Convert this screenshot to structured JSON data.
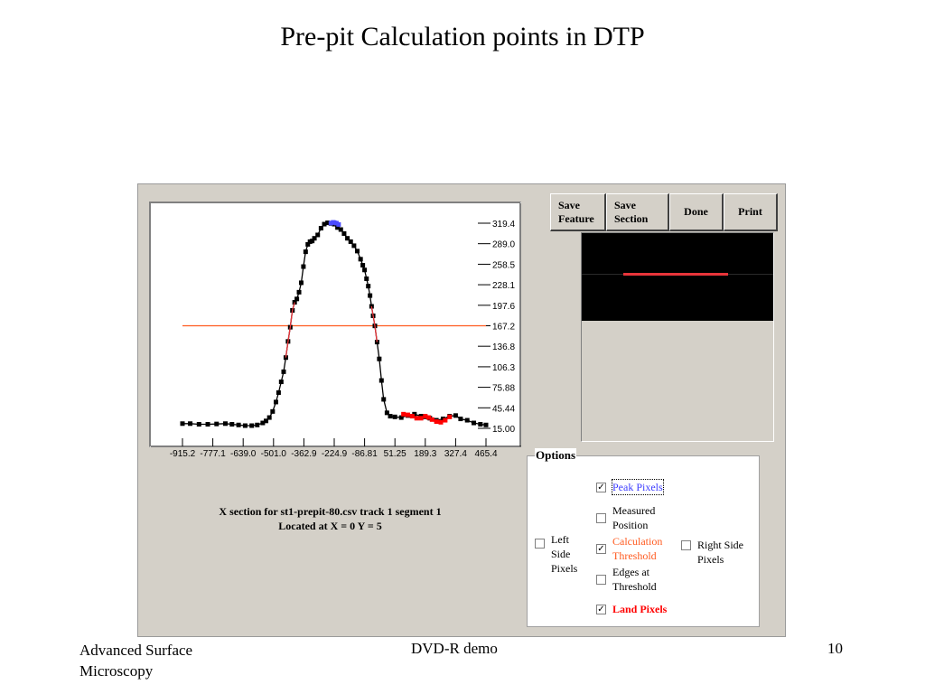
{
  "slide": {
    "title": "Pre-pit Calculation points in DTP",
    "footer_left": "Advanced Surface Microscopy",
    "footer_center": "DVD-R demo",
    "page_number": "10"
  },
  "toolbar": {
    "save_feature": "Save Feature",
    "save_section": "Save Section",
    "done": "Done",
    "print": "Print"
  },
  "caption": {
    "line1": "X section for st1-prepit-80.csv track 1 segment 1",
    "line2": "Located at X = 0 Y = 5"
  },
  "options": {
    "title": "Options",
    "peak_pixels": {
      "label": "Peak Pixels",
      "checked": true
    },
    "measured_position": {
      "label": "Measured Position",
      "checked": false
    },
    "calculation_threshold": {
      "label": "Calculation Threshold",
      "checked": true
    },
    "edges_at_threshold": {
      "label": "Edges at Threshold",
      "checked": false
    },
    "land_pixels": {
      "label": "Land Pixels",
      "checked": true
    },
    "left_side_pixels": {
      "label": "Left Side Pixels",
      "checked": false
    },
    "right_side_pixels": {
      "label": "Right Side Pixels",
      "checked": false
    }
  },
  "colors": {
    "peak": "#4b4bff",
    "threshold": "#ff5a1f",
    "land": "#ff0000",
    "profile": "#000000",
    "edge": "#e8353a"
  },
  "chart_data": {
    "type": "line",
    "title": "",
    "xlabel": "",
    "ylabel": "",
    "x_ticks": [
      "-915.2",
      "-777.1",
      "-639.0",
      "-501.0",
      "-362.9",
      "-224.9",
      "-86.81",
      "51.25",
      "189.3",
      "327.4",
      "465.4"
    ],
    "y_ticks": [
      "319.4",
      "289.0",
      "258.5",
      "228.1",
      "197.6",
      "167.2",
      "136.8",
      "106.3",
      "75.88",
      "45.44",
      "15.00"
    ],
    "xlim": [
      -915.2,
      465.4
    ],
    "ylim": [
      15.0,
      319.4
    ],
    "threshold": 167.2,
    "series": [
      {
        "role": "profile",
        "x": [
          -915.2,
          -880,
          -840,
          -800,
          -760,
          -720,
          -690,
          -660,
          -630,
          -600,
          -575,
          -550,
          -535,
          -520,
          -505,
          -490,
          -478,
          -466,
          -455,
          -445,
          -435,
          -425,
          -415,
          -405,
          -395,
          -385,
          -375,
          -365,
          -355,
          -345,
          -335,
          -325,
          -315,
          -300,
          -285,
          -270,
          -255,
          -240,
          -224.9,
          -210,
          -195,
          -180,
          -165,
          -150,
          -135,
          -120,
          -105,
          -95,
          -86.81,
          -78,
          -70,
          -62,
          -55,
          -48,
          -40,
          -30,
          -20,
          -10,
          0,
          15,
          30,
          51.25,
          80,
          110,
          140,
          170,
          189.3,
          210,
          240,
          270,
          300,
          327.4,
          350,
          380,
          410,
          440,
          465.4
        ],
        "y": [
          22,
          22,
          21,
          21,
          21.5,
          22,
          21,
          20,
          19,
          19,
          20,
          23,
          26,
          31,
          40,
          54,
          68,
          84,
          99,
          120,
          144,
          165,
          190,
          202,
          207,
          217,
          231,
          255,
          277,
          288,
          292,
          293,
          297,
          302,
          312,
          318,
          320,
          319,
          318,
          313,
          310,
          304,
          297,
          292,
          286,
          278,
          266,
          257,
          250,
          237,
          226,
          212,
          196,
          182,
          167,
          143,
          118,
          86,
          58,
          38,
          33,
          32,
          31,
          34,
          36,
          33,
          32,
          30,
          27,
          29,
          33,
          34,
          29,
          27,
          23,
          21,
          20
        ]
      },
      {
        "role": "peak",
        "x": [
          -240,
          -230,
          -224.9,
          -215,
          -205
        ],
        "y": [
          319.5,
          320.6,
          320.3,
          319.5,
          317.5
        ]
      },
      {
        "role": "land",
        "x": [
          90,
          110,
          130,
          150,
          170,
          189.3,
          205,
          220,
          240,
          260,
          280,
          300
        ],
        "y": [
          36,
          35,
          33,
          30,
          30,
          33,
          31,
          28,
          25,
          24,
          27,
          32
        ]
      }
    ]
  }
}
